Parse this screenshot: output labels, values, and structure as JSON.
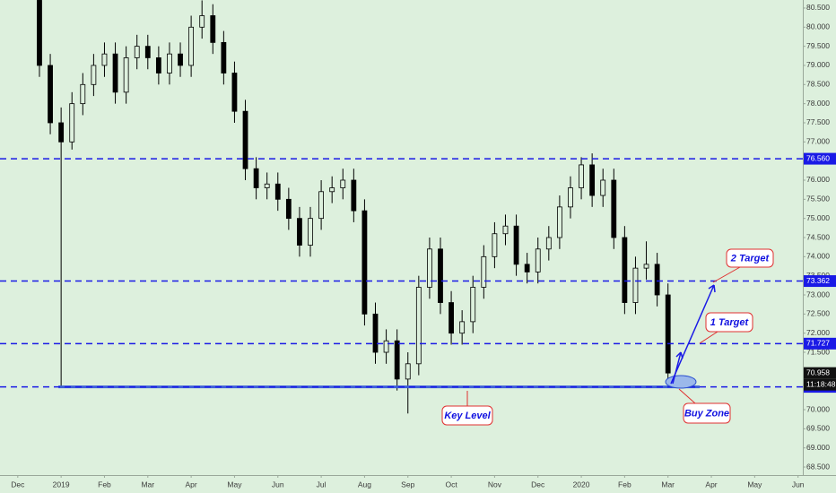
{
  "chart_data": {
    "type": "candlestick",
    "color": "#000000",
    "x": [
      0.5,
      0.75,
      1.0,
      1.25,
      1.5,
      1.75,
      2.0,
      2.25,
      2.5,
      2.75,
      3.0,
      3.25,
      3.5,
      3.75,
      4.0,
      4.25,
      4.5,
      4.75,
      5.0,
      5.25,
      5.5,
      5.75,
      6.0,
      6.25,
      6.5,
      6.75,
      7.0,
      7.25,
      7.5,
      7.75,
      8.0,
      8.25,
      8.5,
      8.75,
      9.0,
      9.25,
      9.5,
      9.75,
      10.0,
      10.25,
      10.5,
      10.75,
      11.0,
      11.25,
      11.5,
      11.75,
      12.0,
      12.25,
      12.5,
      12.75,
      13.0,
      13.25,
      13.5,
      13.75,
      14.0,
      14.25,
      14.5,
      14.75,
      15.0
    ],
    "open": [
      80.7,
      79.0,
      77.5,
      77.0,
      78.0,
      78.5,
      79.0,
      79.3,
      78.3,
      79.2,
      79.5,
      79.2,
      78.8,
      79.3,
      79.0,
      80.0,
      80.3,
      79.6,
      78.8,
      77.8,
      76.3,
      75.8,
      75.9,
      75.5,
      75.0,
      74.3,
      75.0,
      75.7,
      75.8,
      76.0,
      75.2,
      72.5,
      71.5,
      71.8,
      70.8,
      71.2,
      73.2,
      74.2,
      72.8,
      72.0,
      72.3,
      73.2,
      74.0,
      74.6,
      74.8,
      73.8,
      73.6,
      74.2,
      74.5,
      75.3,
      75.8,
      76.4,
      75.6,
      76.0,
      74.5,
      72.8,
      73.7,
      73.8,
      73.0
    ],
    "high": [
      80.9,
      79.3,
      77.9,
      78.3,
      78.8,
      79.3,
      79.6,
      79.6,
      79.5,
      79.8,
      79.8,
      79.5,
      79.6,
      79.6,
      80.3,
      80.7,
      80.6,
      79.9,
      79.1,
      78.1,
      76.6,
      76.2,
      76.2,
      75.8,
      75.3,
      75.3,
      76.0,
      76.1,
      76.3,
      76.3,
      75.5,
      72.8,
      72.1,
      72.1,
      71.5,
      73.5,
      74.5,
      74.5,
      73.1,
      72.6,
      73.5,
      74.3,
      74.9,
      75.1,
      75.1,
      74.1,
      74.5,
      74.8,
      75.6,
      76.1,
      76.6,
      76.7,
      76.3,
      76.3,
      74.8,
      74.0,
      74.4,
      74.1,
      73.3
    ],
    "low": [
      78.7,
      77.2,
      70.6,
      76.8,
      77.7,
      78.2,
      78.7,
      78.0,
      78.0,
      78.9,
      78.9,
      78.5,
      78.5,
      78.7,
      78.7,
      79.7,
      79.3,
      78.5,
      77.5,
      76.0,
      75.5,
      75.5,
      75.2,
      74.7,
      74.0,
      74.0,
      74.7,
      75.4,
      75.5,
      74.9,
      72.2,
      71.2,
      71.2,
      70.5,
      69.9,
      70.9,
      72.9,
      72.5,
      71.7,
      71.7,
      72.0,
      72.9,
      73.7,
      74.3,
      73.5,
      73.3,
      73.3,
      73.9,
      74.2,
      75.0,
      75.5,
      75.3,
      75.3,
      74.2,
      72.5,
      72.5,
      73.4,
      72.7,
      70.66
    ],
    "close": [
      79.0,
      77.5,
      77.0,
      78.0,
      78.5,
      79.0,
      79.3,
      78.3,
      79.2,
      79.5,
      79.2,
      78.8,
      79.3,
      79.0,
      80.0,
      80.3,
      79.6,
      78.8,
      77.8,
      76.3,
      75.8,
      75.9,
      75.5,
      75.0,
      74.3,
      75.0,
      75.7,
      75.8,
      76.0,
      75.2,
      72.5,
      71.5,
      71.8,
      70.8,
      71.2,
      73.2,
      74.2,
      72.8,
      72.0,
      72.3,
      73.2,
      74.0,
      74.6,
      74.8,
      73.8,
      73.6,
      74.2,
      74.5,
      75.3,
      75.8,
      76.4,
      75.6,
      76.0,
      74.5,
      72.8,
      73.7,
      73.8,
      73.0,
      70.958
    ],
    "xlim": [
      -0.41,
      18.11
    ],
    "ylim": [
      68.29,
      80.71
    ],
    "xticks": [
      {
        "value": 0,
        "label": "Dec"
      },
      {
        "value": 1,
        "label": "2019"
      },
      {
        "value": 2,
        "label": "Feb"
      },
      {
        "value": 3,
        "label": "Mar"
      },
      {
        "value": 4,
        "label": "Apr"
      },
      {
        "value": 5,
        "label": "May"
      },
      {
        "value": 6,
        "label": "Jun"
      },
      {
        "value": 7,
        "label": "Jul"
      },
      {
        "value": 8,
        "label": "Aug"
      },
      {
        "value": 9,
        "label": "Sep"
      },
      {
        "value": 10,
        "label": "Oct"
      },
      {
        "value": 11,
        "label": "Nov"
      },
      {
        "value": 12,
        "label": "Dec"
      },
      {
        "value": 13,
        "label": "2020"
      },
      {
        "value": 14,
        "label": "Feb"
      },
      {
        "value": 15,
        "label": "Mar"
      },
      {
        "value": 16,
        "label": "Apr"
      },
      {
        "value": 17,
        "label": "May"
      },
      {
        "value": 18,
        "label": "Jun"
      }
    ],
    "yticks": [
      {
        "value": 68.5,
        "label": "68.500"
      },
      {
        "value": 69,
        "label": "69.000"
      },
      {
        "value": 69.5,
        "label": "69.500"
      },
      {
        "value": 70,
        "label": "70.000"
      },
      {
        "value": 70.5,
        "label": "70.500"
      },
      {
        "value": 71,
        "label": "71.000"
      },
      {
        "value": 71.5,
        "label": "71.500"
      },
      {
        "value": 72,
        "label": "72.000"
      },
      {
        "value": 72.5,
        "label": "72.500"
      },
      {
        "value": 73,
        "label": "73.000"
      },
      {
        "value": 73.5,
        "label": "73.500"
      },
      {
        "value": 74,
        "label": "74.000"
      },
      {
        "value": 74.5,
        "label": "74.500"
      },
      {
        "value": 75,
        "label": "75.000"
      },
      {
        "value": 75.5,
        "label": "75.500"
      },
      {
        "value": 76,
        "label": "76.000"
      },
      {
        "value": 76.5,
        "label": "76.500"
      },
      {
        "value": 77,
        "label": "77.000"
      },
      {
        "value": 77.5,
        "label": "77.500"
      },
      {
        "value": 78,
        "label": "78.000"
      },
      {
        "value": 78.5,
        "label": "78.500"
      },
      {
        "value": 79,
        "label": "79.000"
      },
      {
        "value": 79.5,
        "label": "79.500"
      },
      {
        "value": 80,
        "label": "80.000"
      },
      {
        "value": 80.5,
        "label": "80.500"
      }
    ],
    "levels": [
      {
        "value": 76.56,
        "label": "76.560"
      },
      {
        "value": 73.362,
        "label": "73.362"
      },
      {
        "value": 71.727,
        "label": "71.727"
      },
      {
        "value": 70.596,
        "label": "70.596"
      }
    ],
    "level_color": "#1a1ae6",
    "last_price": {
      "value": 70.958,
      "label": "70.958"
    },
    "countdown": "11:18:48",
    "annotations": [
      "2 Target",
      "1 Target",
      "Key Level",
      "Buy Zone"
    ]
  }
}
